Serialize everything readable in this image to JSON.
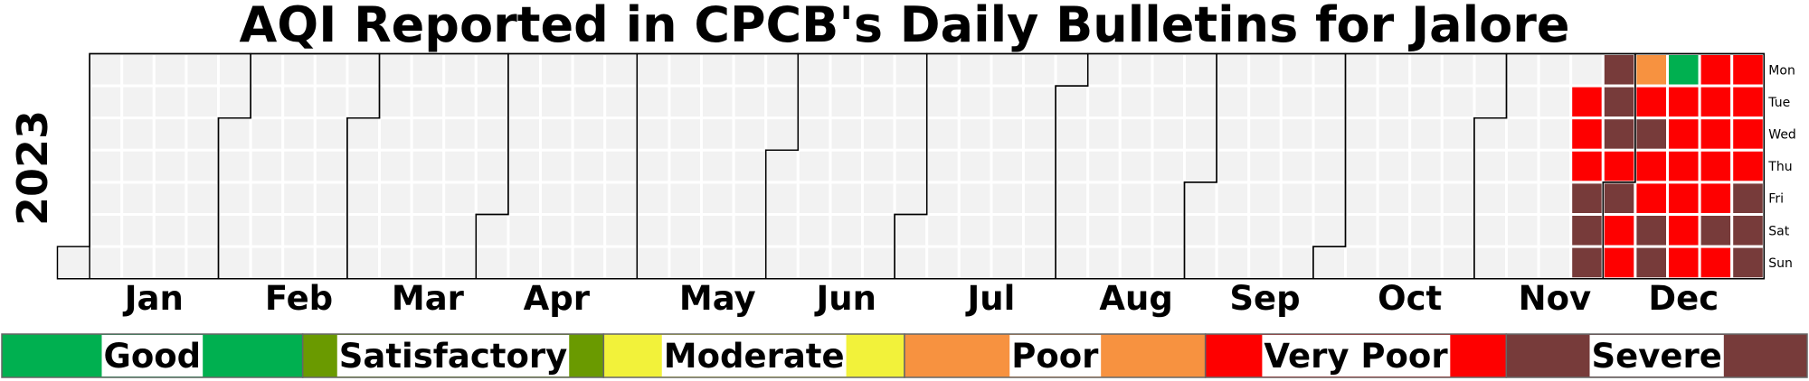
{
  "chart_data": {
    "type": "heatmap",
    "subtype": "calendar",
    "title": "AQI Reported in CPCB's Daily Bulletins for Jalore",
    "year": "2023",
    "month_labels": [
      "Jan",
      "Feb",
      "Mar",
      "Apr",
      "May",
      "Jun",
      "Jul",
      "Aug",
      "Sep",
      "Oct",
      "Nov",
      "Dec"
    ],
    "weekday_labels": [
      "Mon",
      "Tue",
      "Wed",
      "Thu",
      "Fri",
      "Sat",
      "Sun"
    ],
    "empty_color": "#f2f2f2",
    "categories": [
      {
        "name": "Good",
        "color": "#00b050"
      },
      {
        "name": "Satisfactory",
        "color": "#6a9a00"
      },
      {
        "name": "Moderate",
        "color": "#f2f23a"
      },
      {
        "name": "Poor",
        "color": "#f79240"
      },
      {
        "name": "Very Poor",
        "color": "#fe0000"
      },
      {
        "name": "Severe",
        "color": "#773b3a"
      }
    ],
    "days": [
      {
        "date": "2023-11-21",
        "category": "Very Poor"
      },
      {
        "date": "2023-11-22",
        "category": "Very Poor"
      },
      {
        "date": "2023-11-23",
        "category": "Very Poor"
      },
      {
        "date": "2023-11-24",
        "category": "Severe"
      },
      {
        "date": "2023-11-25",
        "category": "Severe"
      },
      {
        "date": "2023-11-26",
        "category": "Severe"
      },
      {
        "date": "2023-11-27",
        "category": "Severe"
      },
      {
        "date": "2023-11-28",
        "category": "Severe"
      },
      {
        "date": "2023-11-29",
        "category": "Severe"
      },
      {
        "date": "2023-11-30",
        "category": "Very Poor"
      },
      {
        "date": "2023-12-01",
        "category": "Severe"
      },
      {
        "date": "2023-12-02",
        "category": "Very Poor"
      },
      {
        "date": "2023-12-03",
        "category": "Very Poor"
      },
      {
        "date": "2023-12-04",
        "category": "Poor"
      },
      {
        "date": "2023-12-05",
        "category": "Very Poor"
      },
      {
        "date": "2023-12-06",
        "category": "Severe"
      },
      {
        "date": "2023-12-07",
        "category": "Very Poor"
      },
      {
        "date": "2023-12-08",
        "category": "Very Poor"
      },
      {
        "date": "2023-12-09",
        "category": "Severe"
      },
      {
        "date": "2023-12-10",
        "category": "Severe"
      },
      {
        "date": "2023-12-11",
        "category": "Good"
      },
      {
        "date": "2023-12-12",
        "category": "Very Poor"
      },
      {
        "date": "2023-12-13",
        "category": "Very Poor"
      },
      {
        "date": "2023-12-14",
        "category": "Very Poor"
      },
      {
        "date": "2023-12-15",
        "category": "Very Poor"
      },
      {
        "date": "2023-12-16",
        "category": "Very Poor"
      },
      {
        "date": "2023-12-17",
        "category": "Very Poor"
      },
      {
        "date": "2023-12-18",
        "category": "Very Poor"
      },
      {
        "date": "2023-12-19",
        "category": "Very Poor"
      },
      {
        "date": "2023-12-20",
        "category": "Very Poor"
      },
      {
        "date": "2023-12-21",
        "category": "Very Poor"
      },
      {
        "date": "2023-12-22",
        "category": "Very Poor"
      },
      {
        "date": "2023-12-23",
        "category": "Severe"
      },
      {
        "date": "2023-12-24",
        "category": "Very Poor"
      },
      {
        "date": "2023-12-25",
        "category": "Very Poor"
      },
      {
        "date": "2023-12-26",
        "category": "Very Poor"
      },
      {
        "date": "2023-12-27",
        "category": "Very Poor"
      },
      {
        "date": "2023-12-28",
        "category": "Very Poor"
      },
      {
        "date": "2023-12-29",
        "category": "Severe"
      },
      {
        "date": "2023-12-30",
        "category": "Severe"
      },
      {
        "date": "2023-12-31",
        "category": "Severe"
      }
    ]
  }
}
